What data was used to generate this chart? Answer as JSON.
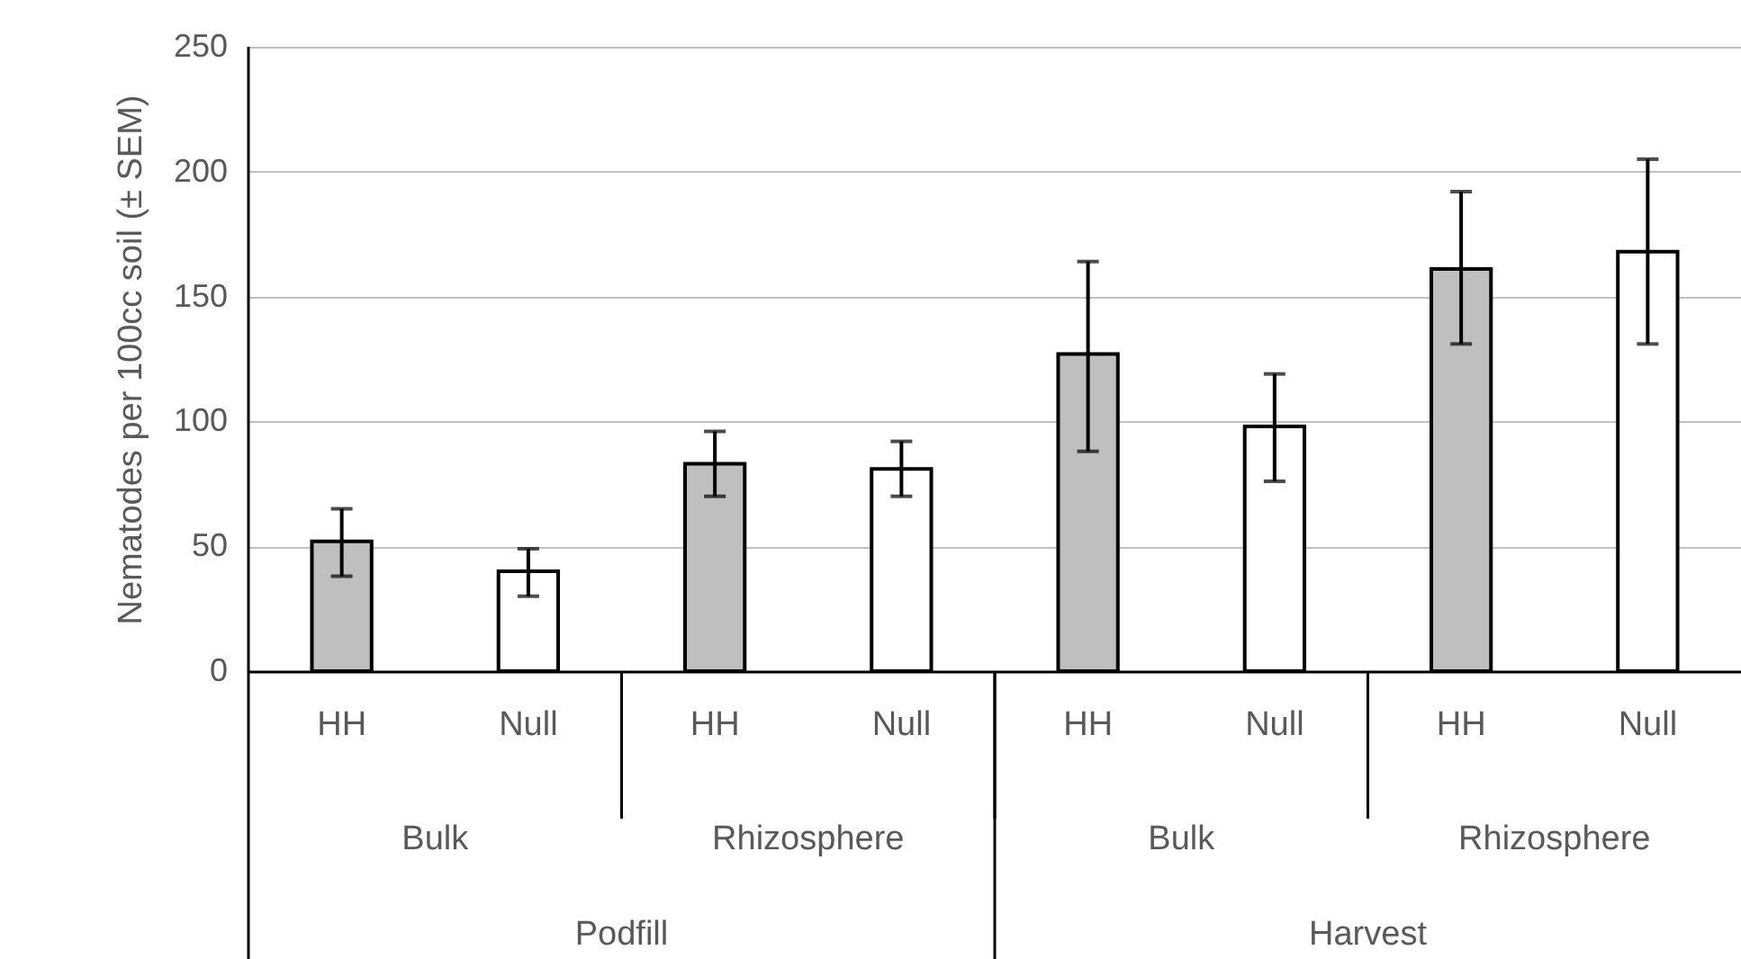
{
  "chart_data": {
    "type": "bar",
    "ylabel": "Nematodes per 100cc soil (± SEM)",
    "categories": [
      "HH",
      "Null",
      "HH",
      "Null",
      "HH",
      "Null",
      "HH",
      "Null"
    ],
    "values": [
      52,
      40,
      83,
      81,
      127,
      98,
      161,
      168
    ],
    "colors": [
      "#bfbfbf",
      "#ffffff",
      "#bfbfbf",
      "#ffffff",
      "#bfbfbf",
      "#ffffff",
      "#bfbfbf",
      "#ffffff"
    ],
    "errors": [
      [
        38,
        65
      ],
      [
        30,
        49
      ],
      [
        70,
        96
      ],
      [
        70,
        92
      ],
      [
        88,
        164
      ],
      [
        76,
        119
      ],
      [
        131,
        192
      ],
      [
        131,
        205
      ]
    ],
    "annotations": [
      "Bulk",
      "Rhizosphere",
      "Bulk",
      "Rhizosphere",
      "Podfill",
      "Harvest"
    ],
    "ylim": [
      0,
      250
    ],
    "yticks": [
      0,
      50,
      100,
      150,
      200,
      250
    ],
    "grid": "y"
  }
}
